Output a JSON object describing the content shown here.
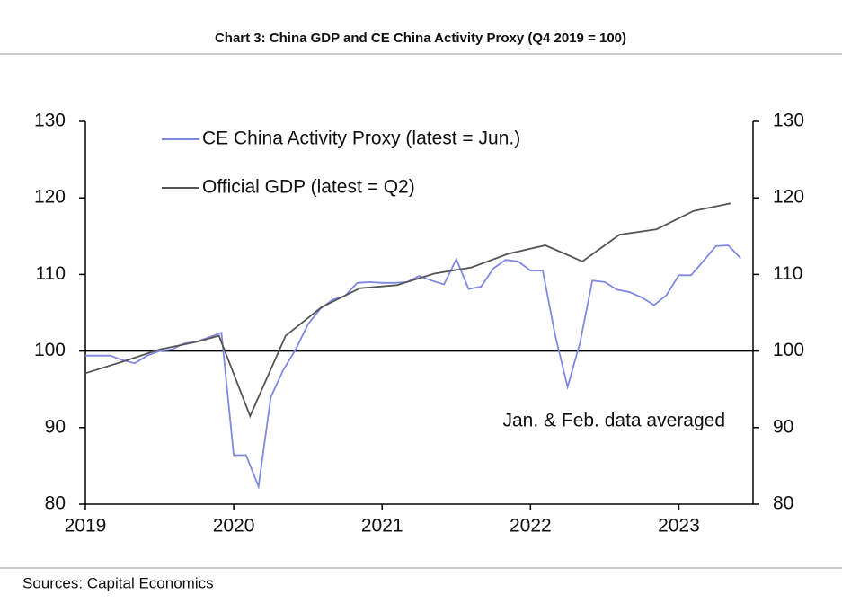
{
  "chart_data": {
    "type": "line",
    "title": "Chart 3: China GDP and CE China Activity Proxy (Q4 2019 = 100)",
    "source": "Sources: Capital Economics",
    "annotation": "Jan. & Feb. data averaged",
    "xlim": [
      2019,
      2023.5
    ],
    "xticks": [
      2019,
      2020,
      2021,
      2022,
      2023
    ],
    "ylim": [
      80,
      130
    ],
    "yticks": [
      80,
      90,
      100,
      110,
      120,
      130
    ],
    "y2lim": [
      80,
      130
    ],
    "y2ticks": [
      80,
      90,
      100,
      110,
      120,
      130
    ],
    "reference_line": 100,
    "series": [
      {
        "name": "CE China Activity Proxy (latest = Jun.)",
        "color": "#8088e0",
        "x": [
          2019,
          2019.083,
          2019.167,
          2019.25,
          2019.333,
          2019.417,
          2019.5,
          2019.583,
          2019.667,
          2019.75,
          2019.833,
          2019.917,
          2020,
          2020.083,
          2020.167,
          2020.25,
          2020.333,
          2020.417,
          2020.5,
          2020.583,
          2020.667,
          2020.75,
          2020.833,
          2020.917,
          2021,
          2021.083,
          2021.167,
          2021.25,
          2021.333,
          2021.417,
          2021.5,
          2021.583,
          2021.667,
          2021.75,
          2021.833,
          2021.917,
          2022,
          2022.083,
          2022.167,
          2022.25,
          2022.333,
          2022.417,
          2022.5,
          2022.583,
          2022.667,
          2022.75,
          2022.833,
          2022.917,
          2023,
          2023.083,
          2023.167,
          2023.25,
          2023.333,
          2023.417
        ],
        "values": [
          99.4,
          99.4,
          99.4,
          98.8,
          98.4,
          99.4,
          100.0,
          100.2,
          101.0,
          101.2,
          101.8,
          102.4,
          86.4,
          86.4,
          82.3,
          94.0,
          97.5,
          100.2,
          103.5,
          105.5,
          106.7,
          107.2,
          108.9,
          109.0,
          108.9,
          108.9,
          109.0,
          109.8,
          109.2,
          108.7,
          112.0,
          108.1,
          108.4,
          110.8,
          111.9,
          111.7,
          110.5,
          110.5,
          102.0,
          95.3,
          101.0,
          109.2,
          109.0,
          108.0,
          107.7,
          107.0,
          106.0,
          107.3,
          109.9,
          109.9,
          111.8,
          113.7,
          113.8,
          112.1
        ]
      },
      {
        "name": "Official GDP (latest = Q2)",
        "color": "#555555",
        "x": [
          2019,
          2019.25,
          2019.5,
          2019.75,
          2019.9,
          2020.11,
          2020.35,
          2020.59,
          2020.85,
          2021.1,
          2021.35,
          2021.6,
          2021.85,
          2022.1,
          2022.35,
          2022.6,
          2022.85,
          2023.1,
          2023.35
        ],
        "values": [
          97.1,
          98.6,
          100.2,
          101.2,
          102.0,
          91.5,
          102.0,
          105.7,
          108.2,
          108.6,
          110.1,
          110.9,
          112.7,
          113.8,
          111.7,
          115.2,
          115.9,
          118.3,
          119.3
        ]
      }
    ]
  }
}
